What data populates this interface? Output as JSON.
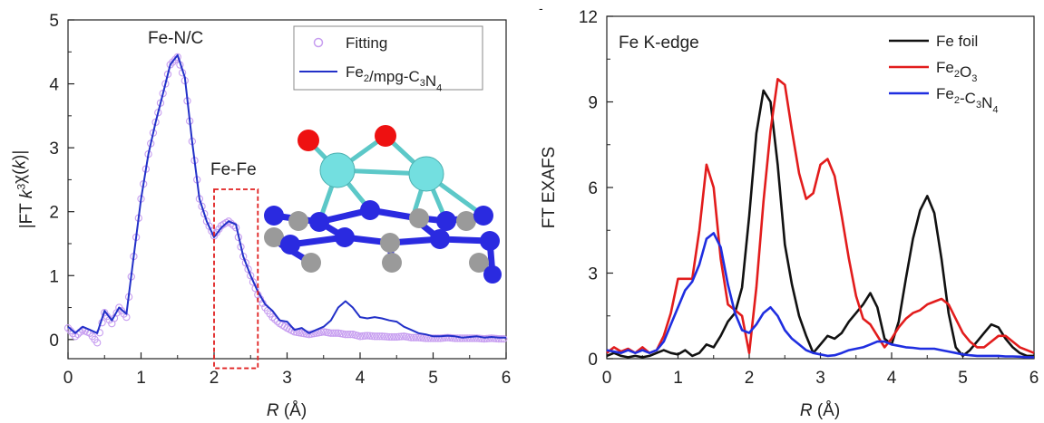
{
  "chart_data": [
    {
      "type": "line",
      "panel": "left",
      "xlabel_italic": "R",
      "xlabel_unit": " (Å)",
      "ylabel_parts": [
        "|FT ",
        "k",
        "3",
        "χ(",
        "k",
        ")|"
      ],
      "xlim": [
        0,
        6
      ],
      "ylim": [
        -0.3,
        5
      ],
      "xticks": [
        "0",
        "1",
        "2",
        "3",
        "4",
        "5",
        "6"
      ],
      "yticks": [
        "0",
        "1",
        "2",
        "3",
        "4",
        "5"
      ],
      "xtick_values": [
        0,
        1,
        2,
        3,
        4,
        5,
        6
      ],
      "ytick_values": [
        0,
        1,
        2,
        3,
        4,
        5
      ],
      "annotations": {
        "peak_label": "Fe-N/C",
        "box_label": "Fe-Fe",
        "box_range_x": [
          2.0,
          2.6
        ],
        "box_range_y": [
          -0.45,
          2.35
        ]
      },
      "legend_position": "top-right",
      "legend": [
        {
          "label_parts": [
            [
              "Fitting",
              ""
            ]
          ],
          "marker": "circle",
          "color": "#c79ef0"
        },
        {
          "label_parts": [
            [
              "Fe",
              ""
            ],
            [
              "2",
              "sub"
            ],
            [
              "/mpg-C",
              ""
            ],
            [
              "3",
              "sub"
            ],
            [
              "N",
              ""
            ],
            [
              "4",
              "sub"
            ]
          ],
          "marker": "line",
          "color": "#2230c8"
        }
      ],
      "series": [
        {
          "role": "fit",
          "color": "#2230c8",
          "x": [
            0.0,
            0.1,
            0.2,
            0.3,
            0.4,
            0.5,
            0.6,
            0.7,
            0.8,
            0.9,
            1.0,
            1.1,
            1.2,
            1.3,
            1.4,
            1.5,
            1.6,
            1.7,
            1.8,
            1.9,
            2.0,
            2.1,
            2.2,
            2.3,
            2.4,
            2.5,
            2.6,
            2.7,
            2.8,
            2.9,
            3.0,
            3.1,
            3.2,
            3.3,
            3.4,
            3.5,
            3.6,
            3.7,
            3.8,
            3.9,
            4.0,
            4.1,
            4.2,
            4.3,
            4.4,
            4.5,
            4.6,
            4.7,
            4.8,
            4.9,
            5.0,
            5.1,
            5.2,
            5.3,
            5.4,
            5.5,
            5.6,
            5.7,
            5.8,
            5.9,
            6.0
          ],
          "y": [
            0.2,
            0.1,
            0.2,
            0.15,
            0.1,
            0.45,
            0.3,
            0.5,
            0.4,
            1.3,
            2.2,
            2.9,
            3.4,
            3.85,
            4.3,
            4.45,
            4.1,
            3.1,
            2.2,
            1.85,
            1.6,
            1.75,
            1.85,
            1.8,
            1.3,
            1.0,
            0.75,
            0.55,
            0.45,
            0.3,
            0.28,
            0.15,
            0.18,
            0.1,
            0.15,
            0.2,
            0.3,
            0.5,
            0.6,
            0.5,
            0.35,
            0.33,
            0.35,
            0.33,
            0.3,
            0.28,
            0.2,
            0.15,
            0.1,
            0.08,
            0.05,
            0.05,
            0.06,
            0.05,
            0.03,
            0.04,
            0.05,
            0.03,
            0.04,
            0.03,
            0.03
          ]
        },
        {
          "role": "data",
          "color": "#c79ef0",
          "x": [
            0.0,
            0.1,
            0.2,
            0.3,
            0.4,
            0.5,
            0.6,
            0.7,
            0.8,
            0.9,
            1.0,
            1.1,
            1.2,
            1.3,
            1.4,
            1.5,
            1.6,
            1.7,
            1.8,
            1.9,
            2.0,
            2.1,
            2.2,
            2.3,
            2.4,
            2.5,
            2.6,
            2.7,
            2.8,
            2.9,
            3.0,
            3.1,
            3.2,
            3.3,
            3.4,
            3.5,
            3.6,
            3.7,
            3.8,
            3.9,
            4.0,
            4.1,
            4.2,
            4.3,
            4.4,
            4.5,
            4.6,
            4.7,
            4.8,
            4.9,
            5.0,
            5.1,
            5.2,
            5.3,
            5.4,
            5.5,
            5.6,
            5.7,
            5.8,
            5.9,
            6.0
          ],
          "y": [
            0.18,
            0.05,
            0.15,
            0.1,
            -0.05,
            0.42,
            0.25,
            0.5,
            0.35,
            1.3,
            2.2,
            2.9,
            3.4,
            3.85,
            4.3,
            4.42,
            4.05,
            3.1,
            2.2,
            1.85,
            1.62,
            1.78,
            1.85,
            1.75,
            1.3,
            1.0,
            0.7,
            0.5,
            0.35,
            0.25,
            0.18,
            0.12,
            0.1,
            0.08,
            0.1,
            0.12,
            0.1,
            0.1,
            0.08,
            0.08,
            0.05,
            0.06,
            0.05,
            0.05,
            0.04,
            0.04,
            0.05,
            0.03,
            0.03,
            0.02,
            0.02,
            0.02,
            0.03,
            0.02,
            0.02,
            0.02,
            0.02,
            0.01,
            0.02,
            0.01,
            0.01
          ]
        }
      ]
    },
    {
      "type": "line",
      "panel": "right",
      "xlabel_italic": "R",
      "xlabel_unit": " (Å)",
      "ylabel": "FT EXAFS",
      "xlim": [
        0,
        6
      ],
      "ylim": [
        0,
        12
      ],
      "xticks": [
        "0",
        "1",
        "2",
        "3",
        "4",
        "5",
        "6"
      ],
      "yticks": [
        "0",
        "3",
        "6",
        "9",
        "12"
      ],
      "xtick_values": [
        0,
        1,
        2,
        3,
        4,
        5,
        6
      ],
      "ytick_values": [
        0,
        3,
        6,
        9,
        12
      ],
      "annotation": "Fe K-edge",
      "legend_position": "top-right",
      "series": [
        {
          "label_parts": [
            [
              "Fe foil",
              ""
            ]
          ],
          "color": "#111111",
          "x": [
            0.0,
            0.1,
            0.2,
            0.3,
            0.4,
            0.5,
            0.6,
            0.7,
            0.8,
            0.9,
            1.0,
            1.1,
            1.2,
            1.3,
            1.4,
            1.5,
            1.6,
            1.7,
            1.8,
            1.9,
            2.0,
            2.1,
            2.2,
            2.3,
            2.4,
            2.5,
            2.6,
            2.7,
            2.8,
            2.9,
            3.0,
            3.1,
            3.2,
            3.3,
            3.4,
            3.5,
            3.6,
            3.7,
            3.8,
            3.9,
            4.0,
            4.1,
            4.2,
            4.3,
            4.4,
            4.5,
            4.6,
            4.7,
            4.8,
            4.9,
            5.0,
            5.1,
            5.2,
            5.3,
            5.4,
            5.5,
            5.6,
            5.7,
            5.8,
            5.9,
            6.0
          ],
          "y": [
            0.1,
            0.2,
            0.1,
            0.05,
            0.1,
            0.05,
            0.1,
            0.2,
            0.3,
            0.2,
            0.15,
            0.3,
            0.1,
            0.2,
            0.5,
            0.4,
            0.8,
            1.3,
            1.6,
            2.5,
            5.0,
            7.9,
            9.4,
            9.0,
            6.8,
            4.0,
            2.6,
            1.5,
            0.8,
            0.2,
            0.5,
            0.8,
            0.7,
            0.9,
            1.3,
            1.6,
            1.9,
            2.3,
            1.8,
            0.7,
            0.5,
            1.3,
            2.8,
            4.2,
            5.2,
            5.7,
            5.1,
            3.5,
            1.6,
            0.4,
            0.1,
            0.3,
            0.6,
            0.9,
            1.2,
            1.1,
            0.7,
            0.4,
            0.2,
            0.1,
            0.1
          ]
        },
        {
          "label_parts": [
            [
              "Fe",
              ""
            ],
            [
              "2",
              "sub"
            ],
            [
              "O",
              ""
            ],
            [
              "3",
              "sub"
            ]
          ],
          "color": "#e21c1c",
          "x": [
            0.0,
            0.1,
            0.2,
            0.3,
            0.4,
            0.5,
            0.6,
            0.7,
            0.8,
            0.9,
            1.0,
            1.1,
            1.2,
            1.3,
            1.4,
            1.5,
            1.6,
            1.7,
            1.8,
            1.9,
            2.0,
            2.1,
            2.2,
            2.3,
            2.4,
            2.5,
            2.6,
            2.7,
            2.8,
            2.9,
            3.0,
            3.1,
            3.2,
            3.3,
            3.4,
            3.5,
            3.6,
            3.7,
            3.8,
            3.9,
            4.0,
            4.1,
            4.2,
            4.3,
            4.4,
            4.5,
            4.6,
            4.7,
            4.8,
            4.9,
            5.0,
            5.1,
            5.2,
            5.3,
            5.4,
            5.5,
            5.6,
            5.7,
            5.8,
            5.9,
            6.0
          ],
          "y": [
            0.2,
            0.4,
            0.25,
            0.35,
            0.2,
            0.4,
            0.2,
            0.3,
            0.8,
            1.6,
            2.8,
            2.8,
            2.8,
            4.5,
            6.8,
            6.0,
            3.5,
            1.9,
            1.7,
            1.5,
            0.2,
            2.5,
            5.5,
            8.0,
            9.8,
            9.6,
            8.0,
            6.5,
            5.6,
            5.8,
            6.8,
            7.0,
            6.4,
            5.0,
            3.5,
            2.2,
            1.4,
            1.2,
            0.8,
            0.4,
            0.7,
            1.1,
            1.4,
            1.6,
            1.7,
            1.9,
            2.0,
            2.1,
            1.9,
            1.4,
            0.9,
            0.6,
            0.4,
            0.4,
            0.6,
            0.8,
            0.8,
            0.6,
            0.4,
            0.3,
            0.2
          ]
        },
        {
          "label_parts": [
            [
              "Fe",
              ""
            ],
            [
              "2",
              "sub"
            ],
            [
              "-C",
              ""
            ],
            [
              "3",
              "sub"
            ],
            [
              "N",
              ""
            ],
            [
              "4",
              "sub"
            ]
          ],
          "color": "#1f2ee0",
          "x": [
            0.0,
            0.1,
            0.2,
            0.3,
            0.4,
            0.5,
            0.6,
            0.7,
            0.8,
            0.9,
            1.0,
            1.1,
            1.2,
            1.3,
            1.4,
            1.5,
            1.6,
            1.7,
            1.8,
            1.9,
            2.0,
            2.1,
            2.2,
            2.3,
            2.4,
            2.5,
            2.6,
            2.7,
            2.8,
            2.9,
            3.0,
            3.1,
            3.2,
            3.3,
            3.4,
            3.5,
            3.6,
            3.7,
            3.8,
            3.9,
            4.0,
            4.1,
            4.2,
            4.3,
            4.4,
            4.5,
            4.6,
            4.7,
            4.8,
            4.9,
            5.0,
            5.1,
            5.2,
            5.3,
            5.4,
            5.5,
            5.6,
            5.7,
            5.8,
            5.9,
            6.0
          ],
          "y": [
            0.3,
            0.25,
            0.2,
            0.3,
            0.2,
            0.3,
            0.2,
            0.3,
            0.6,
            1.2,
            1.8,
            2.4,
            2.7,
            3.3,
            4.2,
            4.4,
            3.9,
            2.6,
            1.6,
            1.0,
            0.9,
            1.2,
            1.6,
            1.8,
            1.5,
            1.0,
            0.7,
            0.5,
            0.3,
            0.2,
            0.15,
            0.1,
            0.12,
            0.2,
            0.3,
            0.35,
            0.4,
            0.5,
            0.6,
            0.6,
            0.5,
            0.45,
            0.4,
            0.38,
            0.35,
            0.35,
            0.35,
            0.3,
            0.25,
            0.2,
            0.15,
            0.12,
            0.1,
            0.1,
            0.1,
            0.1,
            0.08,
            0.08,
            0.07,
            0.05,
            0.05
          ]
        }
      ]
    }
  ]
}
